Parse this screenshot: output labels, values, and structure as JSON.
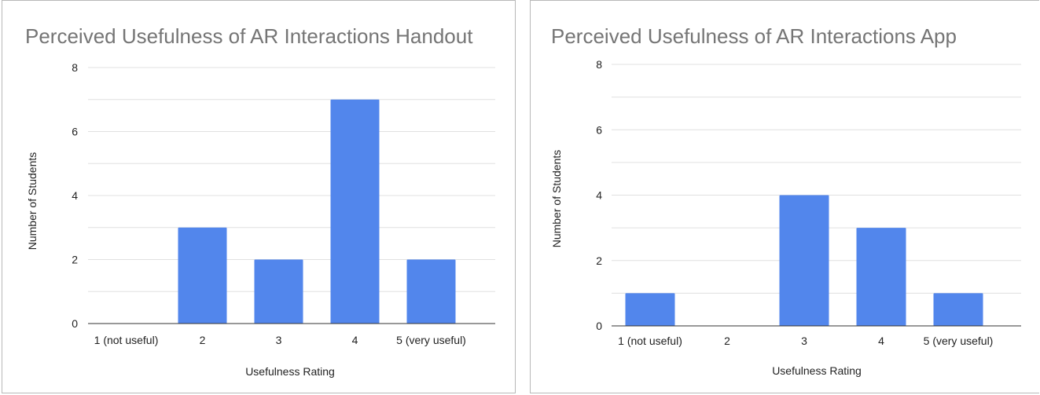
{
  "colors": {
    "bar": "#5286ec",
    "grid": "#e0e0e0",
    "baseline": "#333333",
    "title": "#757575"
  },
  "chart_data": [
    {
      "type": "bar",
      "title": "Perceived Usefulness of AR Interactions Handout",
      "xlabel": "Usefulness Rating",
      "ylabel": "Number of Students",
      "categories": [
        "1 (not useful)",
        "2",
        "3",
        "4",
        "5 (very useful)"
      ],
      "values": [
        0,
        3,
        2,
        7,
        2
      ],
      "ylim": [
        0,
        8
      ],
      "yticks": [
        0,
        2,
        4,
        6,
        8
      ],
      "minor_gridlines": true,
      "legend": "none"
    },
    {
      "type": "bar",
      "title": "Perceived Usefulness of AR Interactions App",
      "xlabel": "Usefulness Rating",
      "ylabel": "Number of Students",
      "categories": [
        "1 (not useful)",
        "2",
        "3",
        "4",
        "5 (very useful)"
      ],
      "values": [
        1,
        0,
        4,
        3,
        1
      ],
      "ylim": [
        0,
        8
      ],
      "yticks": [
        0,
        2,
        4,
        6,
        8
      ],
      "minor_gridlines": true,
      "legend": "none"
    }
  ]
}
